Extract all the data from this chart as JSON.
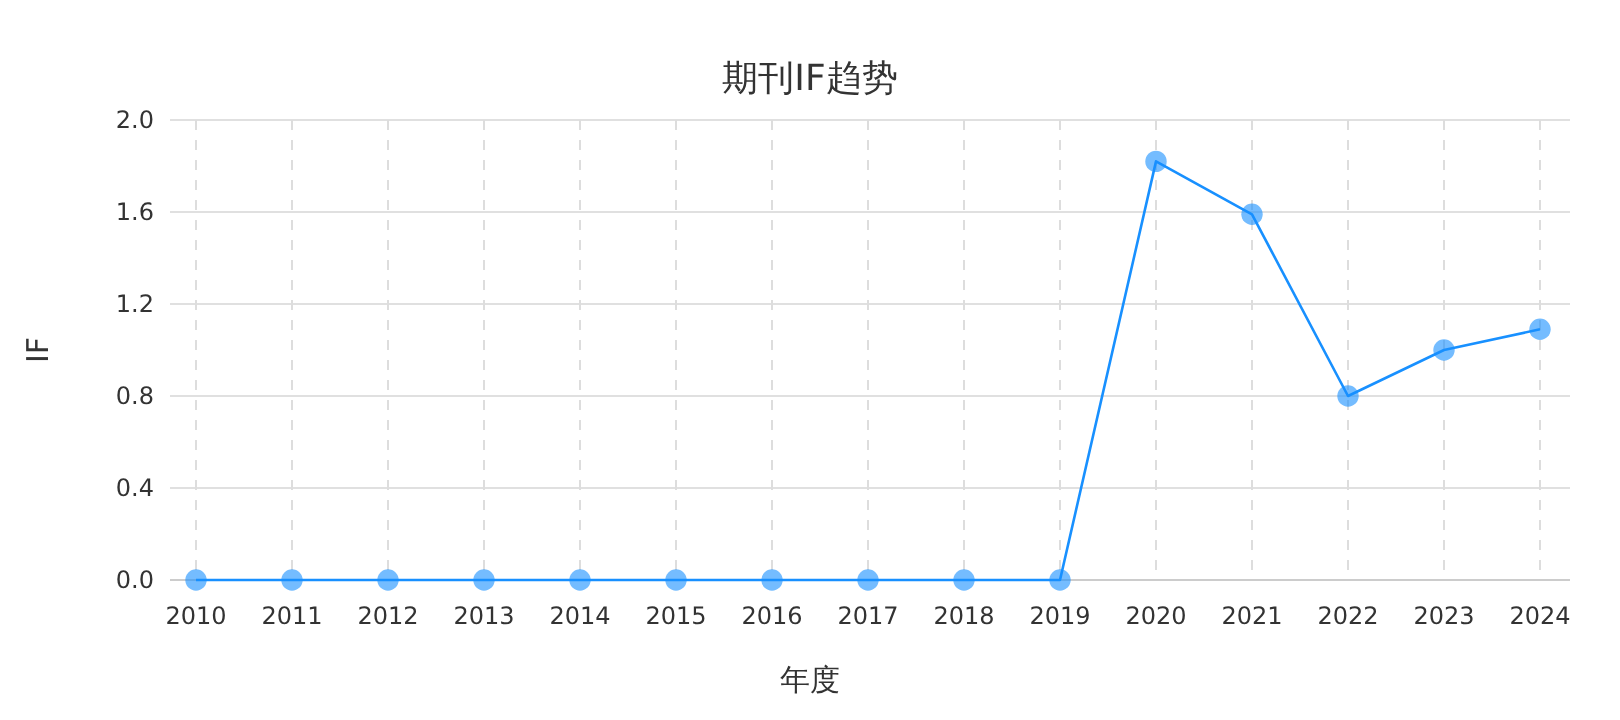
{
  "chart_data": {
    "type": "line",
    "title": "期刊IF趋势",
    "xlabel": "年度",
    "ylabel": "IF",
    "categories": [
      "2010",
      "2011",
      "2012",
      "2013",
      "2014",
      "2015",
      "2016",
      "2017",
      "2018",
      "2019",
      "2020",
      "2021",
      "2022",
      "2023",
      "2024"
    ],
    "series": [
      {
        "color": "#1890ff",
        "values": [
          0,
          0,
          0,
          0,
          0,
          0,
          0,
          0,
          0,
          0,
          1.82,
          1.59,
          0.8,
          1.0,
          1.09
        ]
      }
    ],
    "ylim": [
      0,
      2
    ],
    "yticks": [
      {
        "value": 0,
        "label": "0.0"
      },
      {
        "value": 0.4,
        "label": "0.4"
      },
      {
        "value": 0.8,
        "label": "0.8"
      },
      {
        "value": 1.2,
        "label": "1.2"
      },
      {
        "value": 1.6,
        "label": "1.6"
      },
      {
        "value": 2,
        "label": "2.0"
      }
    ],
    "grid": true,
    "marker": "circle",
    "line_style": "solid"
  }
}
